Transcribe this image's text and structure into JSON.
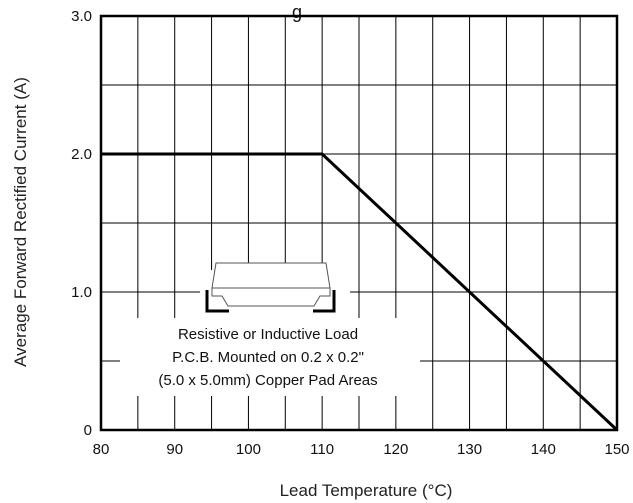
{
  "chart_data": {
    "type": "line",
    "title_fragment": "g",
    "xlabel": "Lead Temperature (°C)",
    "ylabel": "Average Forward Rectified Current (A)",
    "xlim": [
      80,
      150
    ],
    "ylim": [
      0,
      3.0
    ],
    "x_ticks": [
      80,
      90,
      100,
      110,
      120,
      130,
      140,
      150
    ],
    "x_tick_labels": [
      "80",
      "90",
      "100",
      "110",
      "120",
      "130",
      "140",
      "150"
    ],
    "y_ticks": [
      0,
      1,
      2,
      3
    ],
    "y_tick_labels": [
      "0",
      "1.0",
      "2.0",
      "3.0"
    ],
    "grid": true,
    "series": [
      {
        "x": [
          80,
          110,
          150
        ],
        "y": [
          2.0,
          2.0,
          0
        ]
      }
    ],
    "annotation": [
      "Resistive or Inductive Load",
      "P.C.B. Mounted on 0.2 x 0.2\"",
      "(5.0 x 5.0mm) Copper Pad Areas"
    ],
    "colors": {
      "line": "#000000",
      "grid": "#000000",
      "frame": "#000000"
    }
  }
}
